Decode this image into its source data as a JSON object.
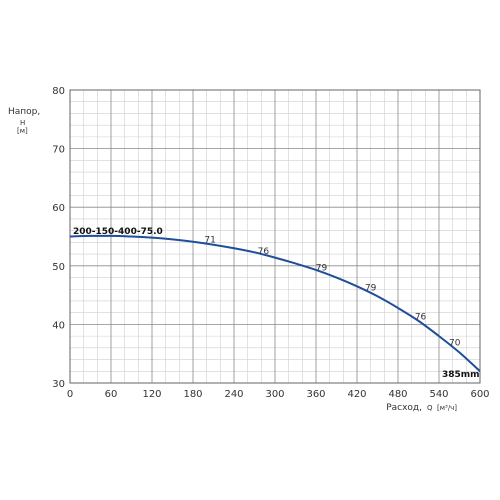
{
  "chart_data": {
    "type": "line",
    "ylabel": "Напор,",
    "ylabel_symbol": "H",
    "ylabel_unit": "[м]",
    "xlabel": "Расход,",
    "xlabel_symbol": "Q",
    "xlabel_unit": "[м³/ч]",
    "xlim": [
      0,
      600
    ],
    "ylim": [
      30,
      80
    ],
    "x_ticks": [
      0,
      60,
      120,
      180,
      240,
      300,
      360,
      420,
      480,
      540,
      600
    ],
    "y_ticks": [
      30,
      40,
      50,
      60,
      70,
      80
    ],
    "grid": true,
    "series": [
      {
        "name": "200-150-400-75.0",
        "color": "#1f4e9c",
        "x": [
          0,
          30,
          60,
          90,
          120,
          150,
          180,
          210,
          240,
          270,
          300,
          330,
          360,
          390,
          420,
          450,
          480,
          510,
          540,
          570,
          600
        ],
        "y": [
          55.0,
          55.1,
          55.1,
          55.0,
          54.8,
          54.5,
          54.1,
          53.6,
          53.0,
          52.3,
          51.4,
          50.4,
          49.3,
          48.0,
          46.5,
          44.8,
          42.8,
          40.6,
          38.0,
          35.2,
          32.0
        ]
      }
    ],
    "annotations": {
      "series_label": "200-150-400-75.0",
      "diameter_label": "385mm",
      "efficiency_labels": [
        {
          "x": 205,
          "y": 54.0,
          "text": "71"
        },
        {
          "x": 283,
          "y": 52.0,
          "text": "76"
        },
        {
          "x": 368,
          "y": 49.2,
          "text": "79"
        },
        {
          "x": 440,
          "y": 45.8,
          "text": "79"
        },
        {
          "x": 513,
          "y": 40.8,
          "text": "76"
        },
        {
          "x": 563,
          "y": 36.4,
          "text": "70"
        }
      ]
    }
  }
}
